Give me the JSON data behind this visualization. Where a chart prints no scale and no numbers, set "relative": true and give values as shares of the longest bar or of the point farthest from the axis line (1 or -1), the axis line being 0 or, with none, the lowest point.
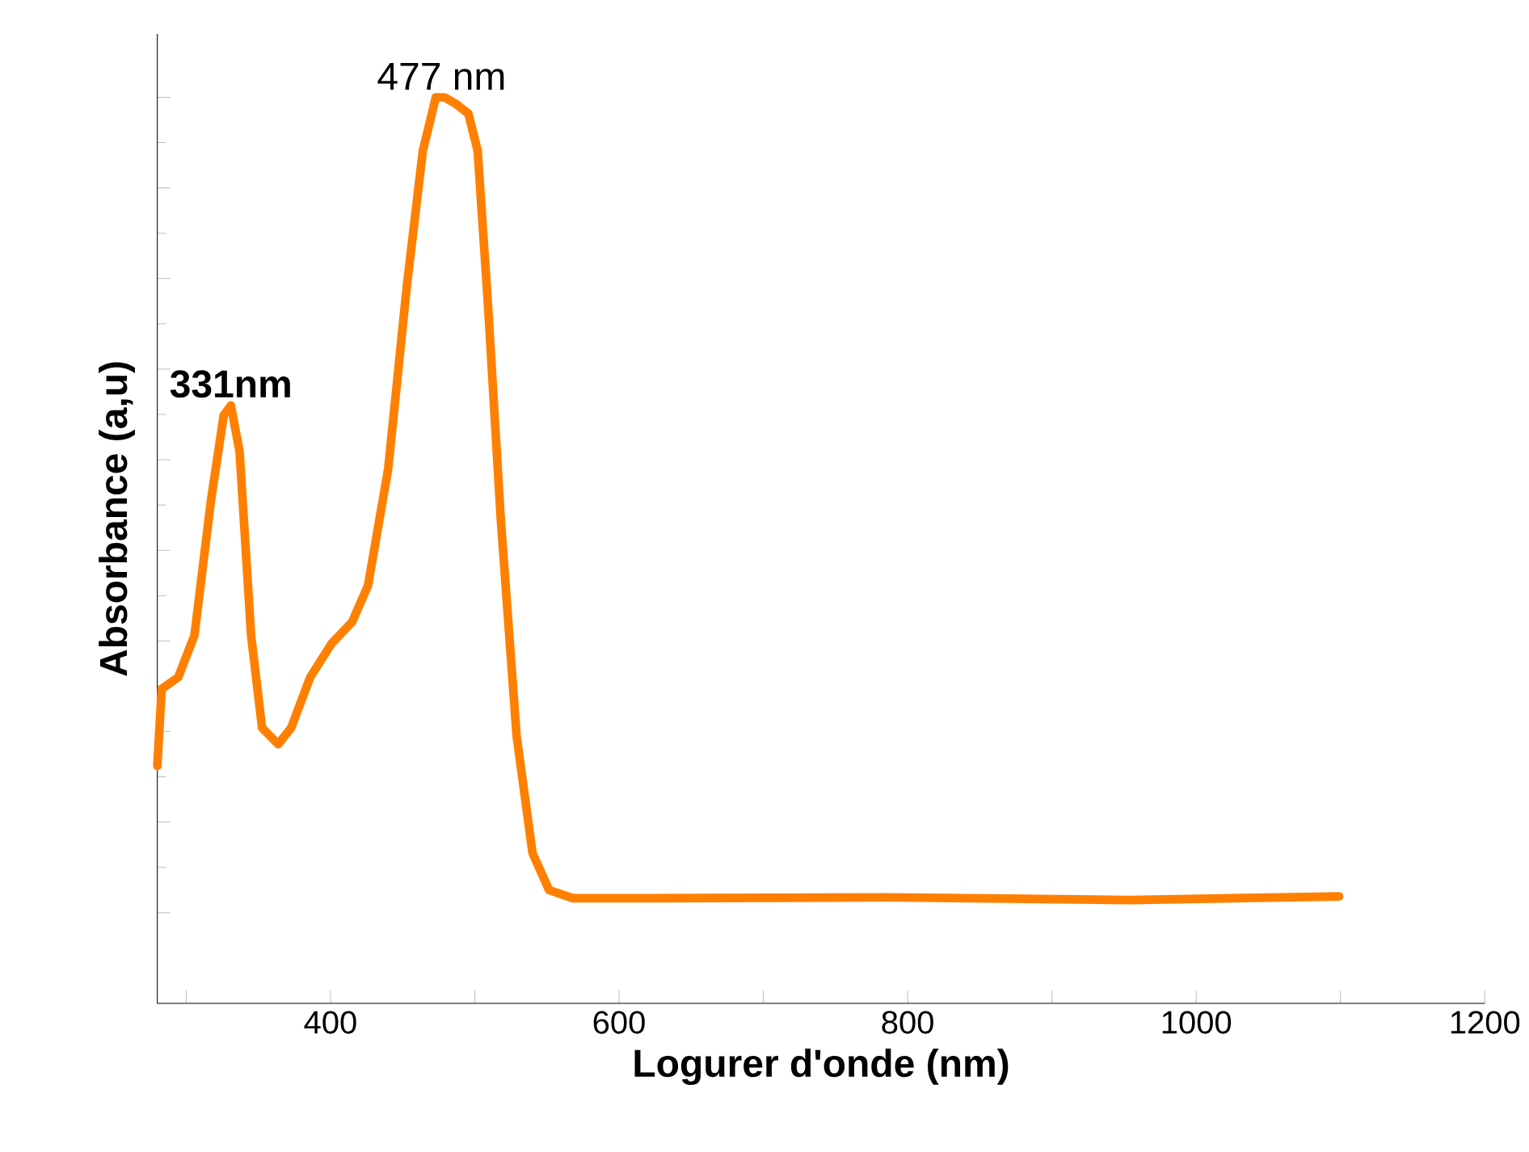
{
  "chart_data": {
    "type": "line",
    "xlabel": "Logurer d'onde (nm)",
    "ylabel": "Absorbance (a,u)",
    "relative": true,
    "color": "#ff8000",
    "marker": "none",
    "line_style": "solid",
    "xlim": [
      280,
      1200
    ],
    "xticks": [
      {
        "value": 300,
        "label": null
      },
      400,
      {
        "value": 500,
        "label": null
      },
      600,
      {
        "value": 700,
        "label": null
      },
      800,
      {
        "value": 900,
        "label": null
      },
      1000,
      {
        "value": 1100,
        "label": null
      },
      1200
    ],
    "x": [
      280,
      283,
      294.5,
      305.7,
      317,
      326,
      331,
      337,
      345,
      352.6,
      363.8,
      372.7,
      386,
      400.7,
      415,
      426,
      440,
      453,
      464,
      473,
      479,
      486.7,
      495.6,
      502,
      509,
      518,
      529,
      540,
      551.5,
      568,
      618.5,
      786,
      954,
      1099
    ],
    "values": [
      0.262,
      0.347,
      0.36,
      0.406,
      0.553,
      0.649,
      0.66,
      0.609,
      0.406,
      0.304,
      0.286,
      0.304,
      0.36,
      0.397,
      0.421,
      0.461,
      0.59,
      0.793,
      0.941,
      1.0,
      1.0,
      0.993,
      0.982,
      0.941,
      0.775,
      0.535,
      0.295,
      0.166,
      0.125,
      0.116,
      0.116,
      0.117,
      0.114,
      0.118
    ],
    "annotations": [
      {
        "text": "477 nm",
        "x": 477,
        "y": 1.0
      },
      {
        "text": "**331nm**",
        "x": 331,
        "y": 0.66
      }
    ]
  }
}
